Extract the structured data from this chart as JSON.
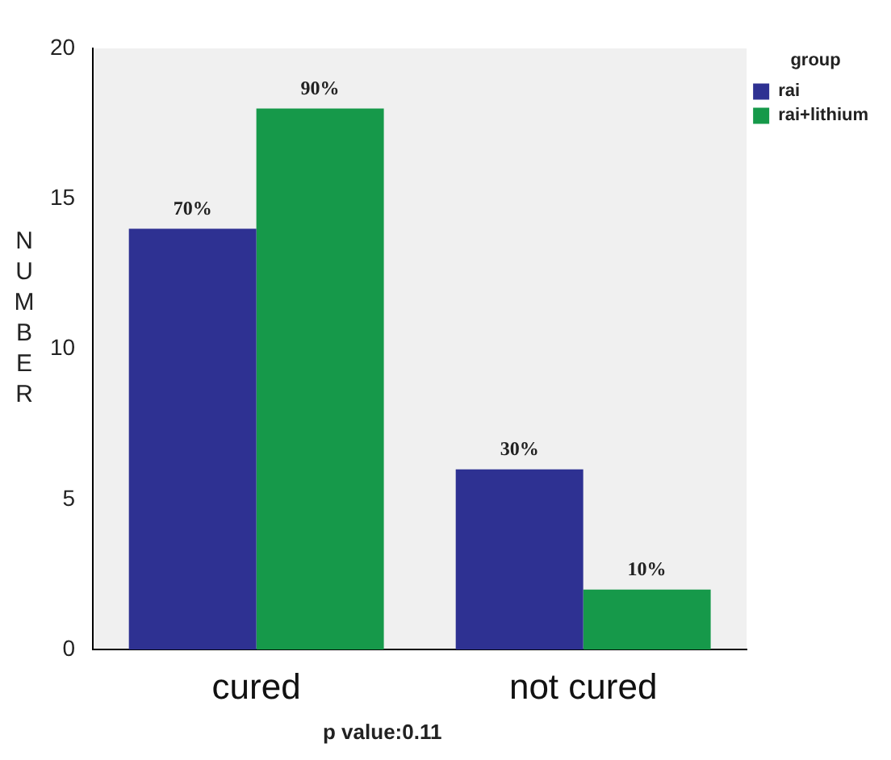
{
  "chart_data": {
    "type": "bar",
    "ylabel": "NUMBER",
    "legend_title": "group",
    "categories": [
      "cured",
      "not cured"
    ],
    "series": [
      {
        "name": "rai",
        "color": "#2e3192",
        "values": [
          14,
          6
        ]
      },
      {
        "name": "rai+lithium",
        "color": "#16994a",
        "values": [
          18,
          2
        ]
      }
    ],
    "ylim": [
      0,
      20
    ],
    "yticks": [
      0,
      5,
      10,
      15,
      20
    ],
    "grid": false,
    "legend": "top right",
    "annotations": [
      {
        "text": "70%",
        "x": "cured",
        "y": 14
      },
      {
        "text": "90%",
        "x": "cured",
        "y": 18
      },
      {
        "text": "30%",
        "x": "not cured",
        "y": 6
      },
      {
        "text": "10%",
        "x": "not cured",
        "y": 2
      },
      "p value:0.11"
    ]
  }
}
